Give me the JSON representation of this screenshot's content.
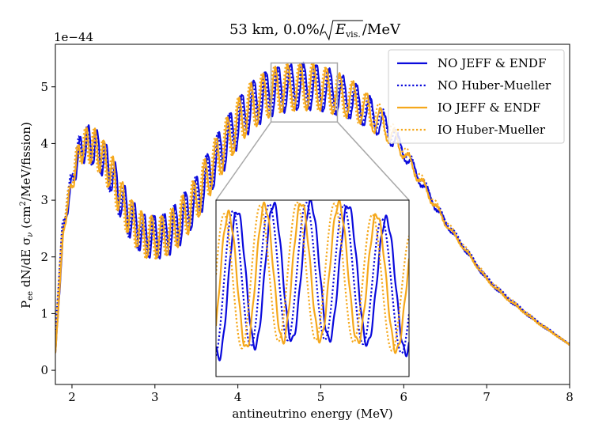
{
  "chart_data": {
    "type": "line",
    "title": "53 km, 0.0%/√E_vis./MeV",
    "title_prefix": "53 km, 0.0%/",
    "title_sqrt_E": "E",
    "title_sqrt_sub": "vis.",
    "title_suffix": "/MeV",
    "xlabel": "antineutrino energy (MeV)",
    "ylabel": "P_ee dN/dE σ_ν (cm²/MeV/fission)",
    "ylabel_P": "P",
    "ylabel_P_sub": "ee",
    "ylabel_mid": " dN/dE σ",
    "ylabel_sigma_sub": "ν",
    "ylabel_unit_open": " (cm",
    "ylabel_unit_sup": "2",
    "ylabel_unit_close": "/MeV/fission)",
    "y_multiplier": "1e−44",
    "xlim": [
      1.8,
      8.0
    ],
    "ylim": [
      -0.25,
      5.75
    ],
    "xticks": [
      2,
      3,
      4,
      5,
      6,
      7,
      8
    ],
    "yticks": [
      0,
      1,
      2,
      3,
      4,
      5
    ],
    "legend_position": "top-right",
    "series": [
      {
        "name": "NO JEFF & ENDF",
        "color": "#0a0adc",
        "style": "solid"
      },
      {
        "name": "NO Huber-Mueller",
        "color": "#0a0adc",
        "style": "dotted"
      },
      {
        "name": "IO JEFF & ENDF",
        "color": "#f5a81c",
        "style": "solid"
      },
      {
        "name": "IO Huber-Mueller",
        "color": "#f5a81c",
        "style": "dotted"
      }
    ],
    "envelope": {
      "x": [
        1.8,
        1.9,
        2.0,
        2.1,
        2.2,
        2.3,
        2.4,
        2.5,
        2.6,
        2.7,
        2.8,
        2.9,
        3.0,
        3.1,
        3.2,
        3.3,
        3.4,
        3.5,
        3.6,
        3.7,
        3.8,
        3.9,
        4.0,
        4.1,
        4.2,
        4.3,
        4.4,
        4.5,
        4.6,
        4.7,
        4.8,
        4.9,
        5.0,
        5.1,
        5.2,
        5.3,
        5.4,
        5.5,
        5.6,
        5.7,
        5.8,
        5.9,
        6.0,
        6.1,
        6.2,
        6.3,
        6.4,
        6.5,
        6.6,
        6.7,
        6.8,
        6.9,
        7.0,
        7.2,
        7.4,
        7.6,
        7.8,
        8.0
      ],
      "y": [
        0.3,
        2.5,
        3.3,
        3.9,
        4.0,
        3.9,
        3.7,
        3.4,
        3.0,
        2.7,
        2.5,
        2.35,
        2.35,
        2.35,
        2.45,
        2.6,
        2.8,
        3.0,
        3.3,
        3.6,
        3.85,
        4.1,
        4.35,
        4.55,
        4.7,
        4.8,
        4.9,
        4.95,
        4.98,
        5.0,
        5.0,
        5.0,
        4.98,
        4.93,
        4.88,
        4.82,
        4.75,
        4.65,
        4.52,
        4.4,
        4.25,
        4.05,
        3.85,
        3.6,
        3.35,
        3.1,
        2.85,
        2.6,
        2.4,
        2.2,
        2.0,
        1.8,
        1.6,
        1.32,
        1.08,
        0.85,
        0.65,
        0.45
      ]
    },
    "amplitude": {
      "x": [
        1.8,
        2.2,
        3.0,
        3.6,
        4.2,
        5.0,
        5.6,
        6.0,
        6.6,
        8.0
      ],
      "y": [
        0.0,
        0.32,
        0.38,
        0.4,
        0.42,
        0.4,
        0.3,
        0.12,
        0.03,
        0.0
      ]
    },
    "oscillation": {
      "omega0": 51.36,
      "x0": 3.0,
      "power": -0.5,
      "phase_shift": 1.6
    },
    "offsets": {
      "hm_x_shift": 0.018,
      "hm_y_scale": 1.018
    },
    "zoom_region": {
      "xlim": [
        4.4,
        5.2
      ],
      "ylim": [
        4.38,
        5.42
      ]
    },
    "inset": {
      "xlim": [
        4.4,
        5.2
      ],
      "ylim": [
        4.38,
        5.42
      ]
    }
  }
}
